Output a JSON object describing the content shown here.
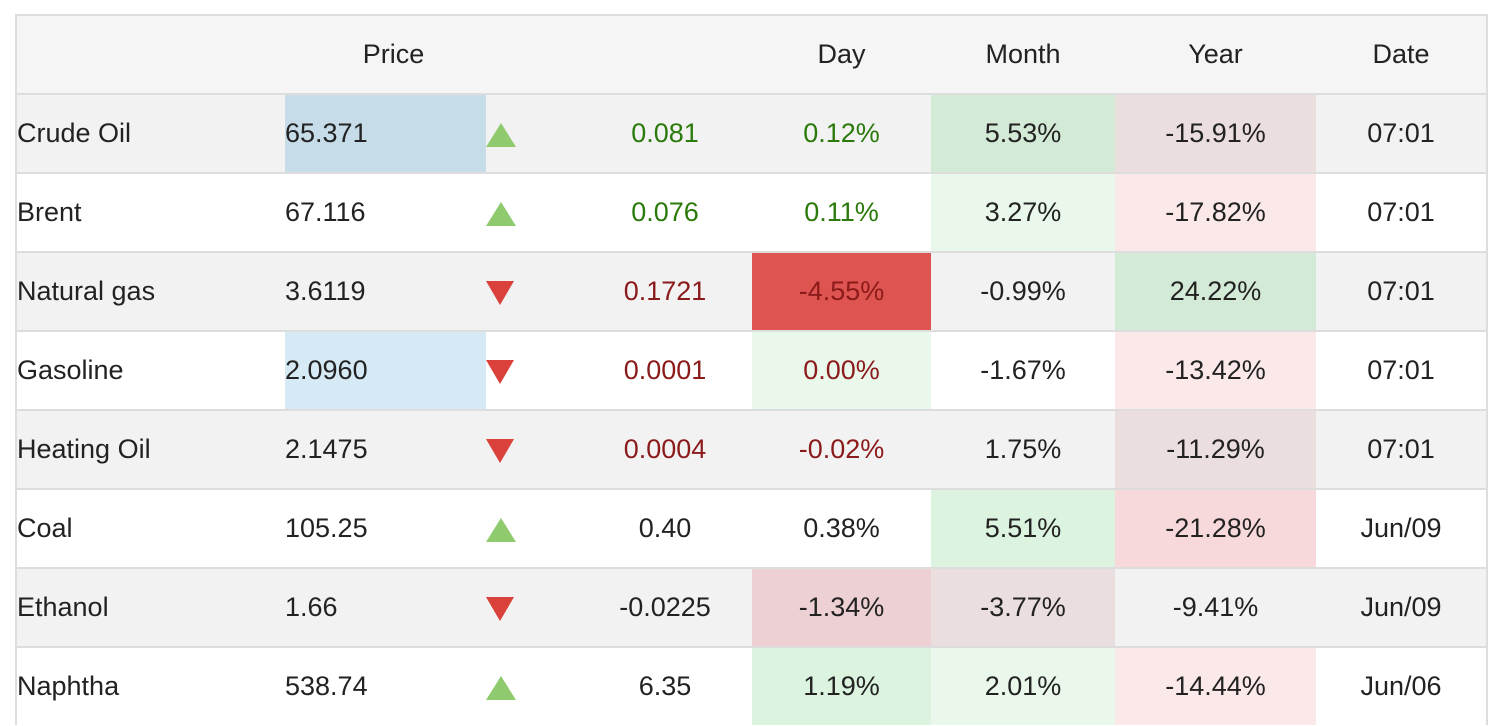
{
  "header": {
    "name": "",
    "price": "Price",
    "arrow": "",
    "change": "",
    "day": "Day",
    "month": "Month",
    "year": "Year",
    "date": "Date"
  },
  "colors": {
    "strong_green": "#d3ead7",
    "light_green": "#eaf8ec",
    "medium_green": "#dbf3df",
    "strong_red": "#de5450",
    "light_red": "#fbe9e9",
    "medium_red": "#f7d8db",
    "dusty_red": "#ebdede",
    "mauve": "#ecd0d3",
    "price_blue_dark": "#c6dce9",
    "price_blue_light": "#d5eaf5",
    "up_arrow": "#8fca6e",
    "down_arrow": "#d9413a"
  },
  "rows": [
    {
      "name": "Crude Oil",
      "price": "65.371",
      "direction": "up",
      "change": "0.081",
      "day": "0.12%",
      "month": "5.53%",
      "year": "-15.91%",
      "date": "07:01",
      "change_color": "pos",
      "day_color": "pos",
      "price_bg": "#c6dce9",
      "day_bg": "",
      "month_bg": "#d3ead7",
      "year_bg": "#ebdede",
      "arrow_icon": "arrow-up-icon"
    },
    {
      "name": "Brent",
      "price": "67.116",
      "direction": "up",
      "change": "0.076",
      "day": "0.11%",
      "month": "3.27%",
      "year": "-17.82%",
      "date": "07:01",
      "change_color": "pos",
      "day_color": "pos",
      "price_bg": "",
      "day_bg": "",
      "month_bg": "#eaf8ec",
      "year_bg": "#fbe9e9",
      "arrow_icon": "arrow-up-icon"
    },
    {
      "name": "Natural gas",
      "price": "3.6119",
      "direction": "down",
      "change": "0.1721",
      "day": "-4.55%",
      "month": "-0.99%",
      "year": "24.22%",
      "date": "07:01",
      "change_color": "neg",
      "day_color": "neg",
      "price_bg": "",
      "day_bg": "#de5450",
      "month_bg": "",
      "year_bg": "#d3ead7",
      "arrow_icon": "arrow-down-icon"
    },
    {
      "name": "Gasoline",
      "price": "2.0960",
      "direction": "down",
      "change": "0.0001",
      "day": "0.00%",
      "month": "-1.67%",
      "year": "-13.42%",
      "date": "07:01",
      "change_color": "neg",
      "day_color": "neg",
      "price_bg": "#d5eaf5",
      "day_bg": "#eaf8ec",
      "month_bg": "",
      "year_bg": "#fbe9e9",
      "arrow_icon": "arrow-down-icon"
    },
    {
      "name": "Heating Oil",
      "price": "2.1475",
      "direction": "down",
      "change": "0.0004",
      "day": "-0.02%",
      "month": "1.75%",
      "year": "-11.29%",
      "date": "07:01",
      "change_color": "neg",
      "day_color": "neg",
      "price_bg": "",
      "day_bg": "",
      "month_bg": "",
      "year_bg": "#ebdede",
      "arrow_icon": "arrow-down-icon"
    },
    {
      "name": "Coal",
      "price": "105.25",
      "direction": "up",
      "change": "0.40",
      "day": "0.38%",
      "month": "5.51%",
      "year": "-21.28%",
      "date": "Jun/09",
      "change_color": "",
      "day_color": "",
      "price_bg": "",
      "day_bg": "",
      "month_bg": "#dbf3df",
      "year_bg": "#f7d8db",
      "arrow_icon": "arrow-up-icon"
    },
    {
      "name": "Ethanol",
      "price": "1.66",
      "direction": "down",
      "change": "-0.0225",
      "day": "-1.34%",
      "month": "-3.77%",
      "year": "-9.41%",
      "date": "Jun/09",
      "change_color": "",
      "day_color": "",
      "price_bg": "",
      "day_bg": "#ecd0d3",
      "month_bg": "#ebdede",
      "year_bg": "",
      "arrow_icon": "arrow-down-icon"
    },
    {
      "name": "Naphtha",
      "price": "538.74",
      "direction": "up",
      "change": "6.35",
      "day": "1.19%",
      "month": "2.01%",
      "year": "-14.44%",
      "date": "Jun/06",
      "change_color": "",
      "day_color": "",
      "price_bg": "",
      "day_bg": "#dbf3df",
      "month_bg": "#eaf8ec",
      "year_bg": "#fbe9e9",
      "arrow_icon": "arrow-up-icon"
    }
  ]
}
